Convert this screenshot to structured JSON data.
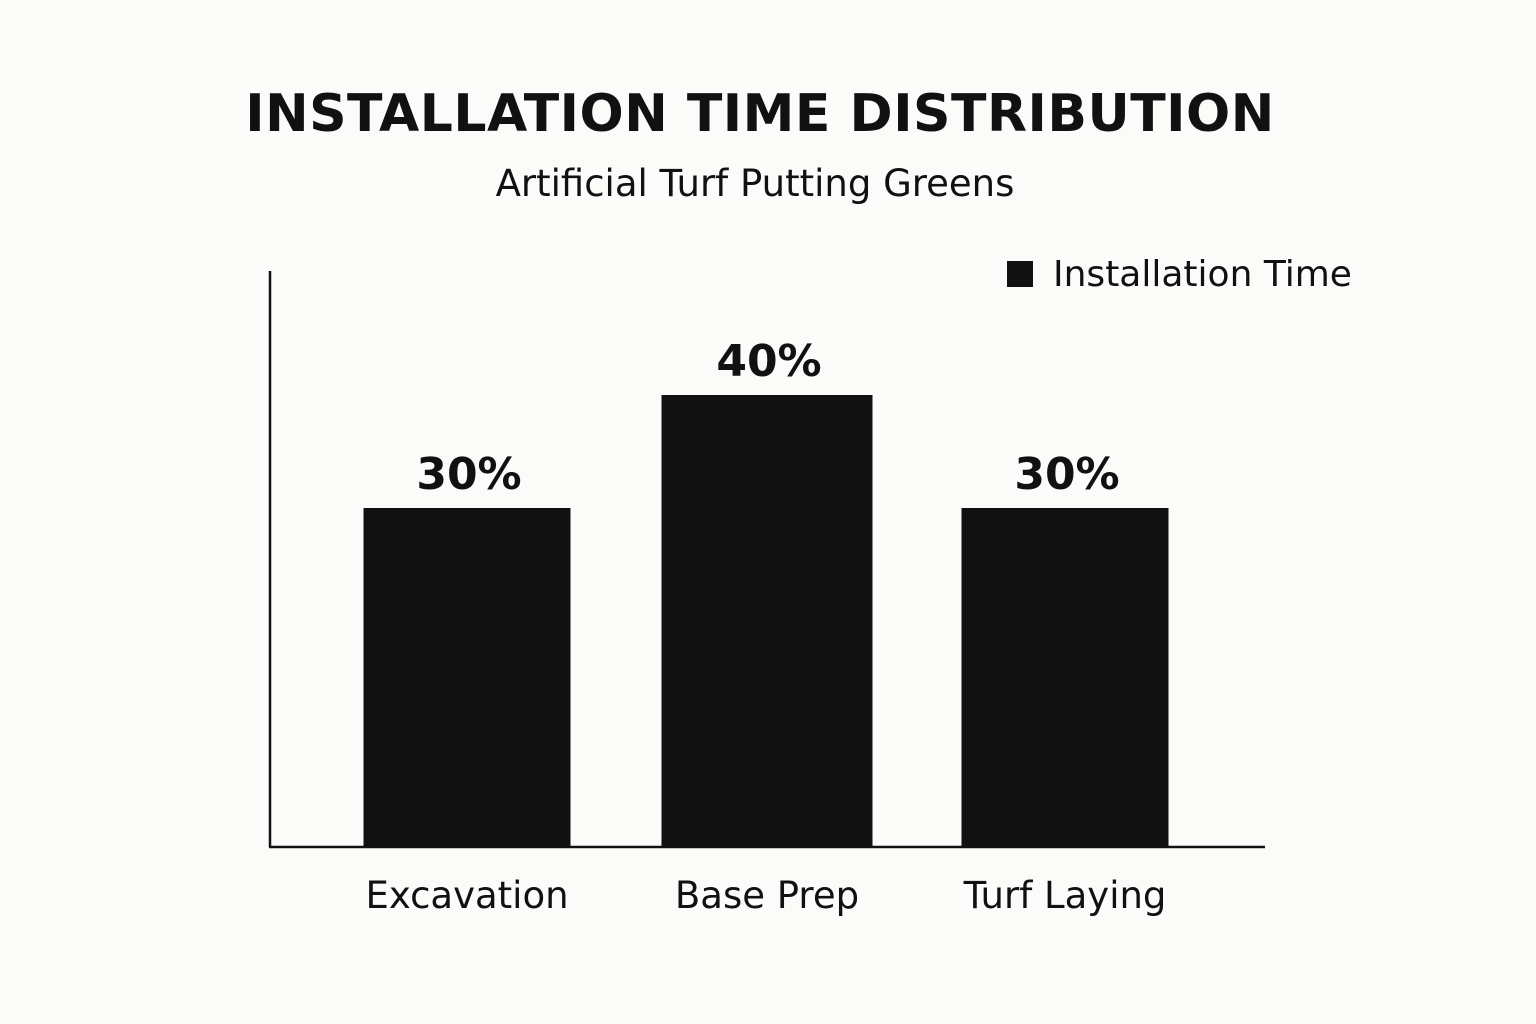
{
  "chart_data": {
    "type": "bar",
    "title": "INSTALLATION TIME DISTRIBUTION",
    "subtitle": "Artificial Turf Putting Greens",
    "categories": [
      "Excavation",
      "Base Prep",
      "Turf Laying"
    ],
    "series": [
      {
        "name": "Installation Time",
        "values": [
          30,
          40,
          30
        ],
        "value_labels": [
          "30%",
          "40%",
          "30%"
        ]
      }
    ],
    "ylim": [
      0,
      63
    ],
    "grid": false,
    "legend_position": "top-right",
    "bar_color": "#111111",
    "axis_color": "#111111"
  }
}
